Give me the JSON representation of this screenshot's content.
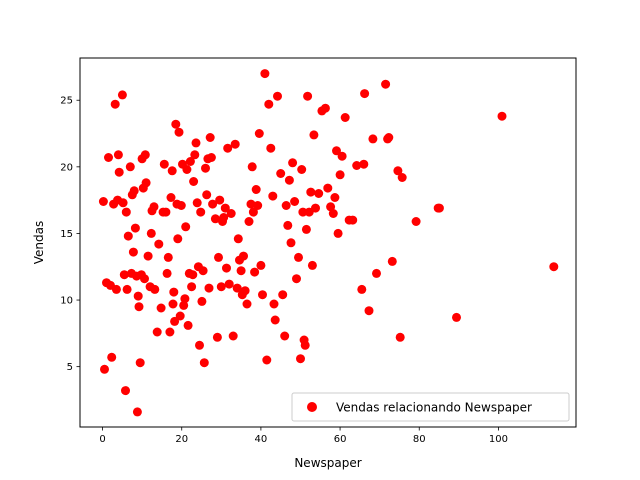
{
  "chart_data": {
    "type": "scatter",
    "title": "",
    "xlabel": "Newspaper",
    "ylabel": "Vendas",
    "xlim": [
      -5.7,
      119.6
    ],
    "ylim": [
      0.47,
      28.17
    ],
    "xticks": [
      0,
      20,
      40,
      60,
      80,
      100
    ],
    "yticks": [
      5,
      10,
      15,
      20,
      25
    ],
    "grid": false,
    "legend_position": "lower-right",
    "series": [
      {
        "name": "Vendas relacionando Newspaper",
        "color": "#ff0000",
        "points": [
          [
            0.2,
            17.4
          ],
          [
            0.5,
            4.8
          ],
          [
            1.0,
            11.3
          ],
          [
            1.5,
            20.7
          ],
          [
            2.0,
            11.1
          ],
          [
            2.3,
            5.7
          ],
          [
            2.8,
            17.2
          ],
          [
            3.2,
            24.7
          ],
          [
            3.5,
            10.8
          ],
          [
            3.8,
            17.5
          ],
          [
            4.0,
            20.9
          ],
          [
            4.2,
            19.6
          ],
          [
            5.0,
            25.4
          ],
          [
            5.2,
            17.3
          ],
          [
            5.5,
            11.9
          ],
          [
            5.8,
            3.2
          ],
          [
            6.0,
            16.6
          ],
          [
            6.2,
            10.8
          ],
          [
            6.5,
            14.8
          ],
          [
            7.0,
            20.0
          ],
          [
            7.3,
            12.0
          ],
          [
            7.5,
            17.9
          ],
          [
            7.8,
            13.6
          ],
          [
            8.0,
            18.2
          ],
          [
            8.3,
            15.4
          ],
          [
            8.6,
            11.8
          ],
          [
            8.8,
            1.6
          ],
          [
            9.0,
            10.3
          ],
          [
            9.2,
            9.5
          ],
          [
            9.5,
            5.3
          ],
          [
            9.8,
            11.9
          ],
          [
            10.0,
            20.6
          ],
          [
            10.3,
            18.4
          ],
          [
            10.6,
            11.6
          ],
          [
            10.8,
            20.9
          ],
          [
            11.0,
            18.8
          ],
          [
            11.5,
            13.3
          ],
          [
            12.0,
            11.0
          ],
          [
            12.3,
            15.0
          ],
          [
            12.5,
            16.7
          ],
          [
            13.0,
            17.0
          ],
          [
            13.2,
            10.8
          ],
          [
            13.8,
            7.6
          ],
          [
            14.2,
            14.2
          ],
          [
            14.8,
            9.4
          ],
          [
            15.3,
            16.6
          ],
          [
            15.6,
            20.2
          ],
          [
            16.0,
            16.6
          ],
          [
            16.3,
            12.0
          ],
          [
            16.6,
            13.2
          ],
          [
            17.0,
            7.6
          ],
          [
            17.3,
            17.7
          ],
          [
            17.6,
            19.7
          ],
          [
            17.8,
            9.7
          ],
          [
            18.0,
            10.6
          ],
          [
            18.2,
            8.4
          ],
          [
            18.5,
            23.2
          ],
          [
            18.8,
            17.2
          ],
          [
            19.0,
            14.6
          ],
          [
            19.3,
            22.6
          ],
          [
            19.6,
            8.8
          ],
          [
            19.9,
            17.1
          ],
          [
            20.2,
            20.2
          ],
          [
            20.5,
            9.6
          ],
          [
            20.8,
            10.1
          ],
          [
            21.0,
            15.5
          ],
          [
            21.3,
            19.8
          ],
          [
            21.6,
            8.1
          ],
          [
            21.9,
            12.0
          ],
          [
            22.2,
            20.4
          ],
          [
            22.5,
            11.0
          ],
          [
            22.8,
            11.9
          ],
          [
            23.0,
            18.9
          ],
          [
            23.3,
            20.9
          ],
          [
            23.6,
            21.8
          ],
          [
            23.9,
            17.3
          ],
          [
            24.2,
            12.5
          ],
          [
            24.5,
            6.6
          ],
          [
            24.8,
            16.6
          ],
          [
            25.1,
            9.9
          ],
          [
            25.4,
            12.2
          ],
          [
            25.7,
            5.3
          ],
          [
            26.0,
            19.9
          ],
          [
            26.3,
            17.9
          ],
          [
            26.6,
            20.6
          ],
          [
            26.9,
            10.9
          ],
          [
            27.2,
            22.2
          ],
          [
            27.5,
            20.7
          ],
          [
            27.8,
            17.2
          ],
          [
            28.5,
            16.1
          ],
          [
            29.0,
            7.2
          ],
          [
            29.3,
            13.2
          ],
          [
            29.6,
            17.5
          ],
          [
            30.0,
            11.0
          ],
          [
            30.3,
            15.9
          ],
          [
            30.6,
            16.2
          ],
          [
            31.0,
            16.9
          ],
          [
            31.3,
            12.4
          ],
          [
            31.6,
            21.4
          ],
          [
            32.0,
            11.2
          ],
          [
            32.5,
            16.5
          ],
          [
            33.0,
            7.3
          ],
          [
            33.5,
            21.7
          ],
          [
            34.0,
            10.9
          ],
          [
            34.3,
            14.6
          ],
          [
            34.6,
            13.0
          ],
          [
            35.0,
            12.2
          ],
          [
            35.3,
            10.4
          ],
          [
            35.6,
            13.3
          ],
          [
            36.0,
            10.7
          ],
          [
            36.5,
            9.7
          ],
          [
            37.0,
            15.9
          ],
          [
            37.5,
            17.2
          ],
          [
            37.8,
            20.0
          ],
          [
            38.1,
            16.6
          ],
          [
            38.4,
            12.1
          ],
          [
            38.8,
            18.3
          ],
          [
            39.2,
            17.1
          ],
          [
            39.6,
            22.5
          ],
          [
            40.0,
            12.6
          ],
          [
            40.4,
            10.4
          ],
          [
            41.0,
            27.0
          ],
          [
            41.5,
            5.5
          ],
          [
            42.0,
            24.7
          ],
          [
            42.5,
            21.4
          ],
          [
            43.0,
            17.8
          ],
          [
            43.3,
            9.7
          ],
          [
            43.6,
            8.5
          ],
          [
            44.2,
            25.3
          ],
          [
            45.0,
            19.5
          ],
          [
            45.5,
            10.4
          ],
          [
            46.0,
            7.3
          ],
          [
            46.4,
            17.1
          ],
          [
            46.8,
            15.6
          ],
          [
            47.2,
            19.0
          ],
          [
            47.6,
            14.3
          ],
          [
            48.0,
            20.3
          ],
          [
            48.5,
            17.4
          ],
          [
            49.0,
            11.6
          ],
          [
            49.5,
            13.2
          ],
          [
            50.0,
            5.6
          ],
          [
            50.3,
            19.8
          ],
          [
            50.6,
            16.6
          ],
          [
            50.9,
            7.0
          ],
          [
            51.2,
            6.6
          ],
          [
            51.5,
            15.3
          ],
          [
            51.8,
            25.3
          ],
          [
            52.2,
            16.6
          ],
          [
            52.6,
            18.1
          ],
          [
            53.0,
            12.6
          ],
          [
            53.4,
            22.4
          ],
          [
            53.8,
            16.9
          ],
          [
            54.6,
            18.0
          ],
          [
            55.4,
            24.2
          ],
          [
            56.3,
            24.4
          ],
          [
            56.9,
            18.4
          ],
          [
            57.6,
            17.0
          ],
          [
            58.3,
            16.5
          ],
          [
            58.7,
            17.7
          ],
          [
            59.1,
            21.2
          ],
          [
            59.5,
            15.0
          ],
          [
            60.0,
            19.4
          ],
          [
            60.5,
            20.8
          ],
          [
            61.3,
            23.7
          ],
          [
            62.3,
            16.0
          ],
          [
            63.2,
            16.0
          ],
          [
            64.2,
            20.1
          ],
          [
            65.5,
            10.8
          ],
          [
            66.2,
            25.5
          ],
          [
            67.3,
            9.2
          ],
          [
            68.3,
            22.1
          ],
          [
            69.2,
            12.0
          ],
          [
            71.5,
            26.2
          ],
          [
            72.3,
            22.2
          ],
          [
            73.2,
            12.9
          ],
          [
            74.6,
            19.7
          ],
          [
            75.2,
            7.2
          ],
          [
            75.7,
            19.2
          ],
          [
            79.2,
            15.9
          ],
          [
            85.1,
            16.9
          ],
          [
            89.4,
            8.7
          ],
          [
            100.9,
            23.8
          ],
          [
            114.0,
            12.5
          ],
          [
            66.0,
            20.2
          ],
          [
            72.0,
            22.1
          ],
          [
            84.8,
            16.9
          ]
        ]
      }
    ]
  }
}
